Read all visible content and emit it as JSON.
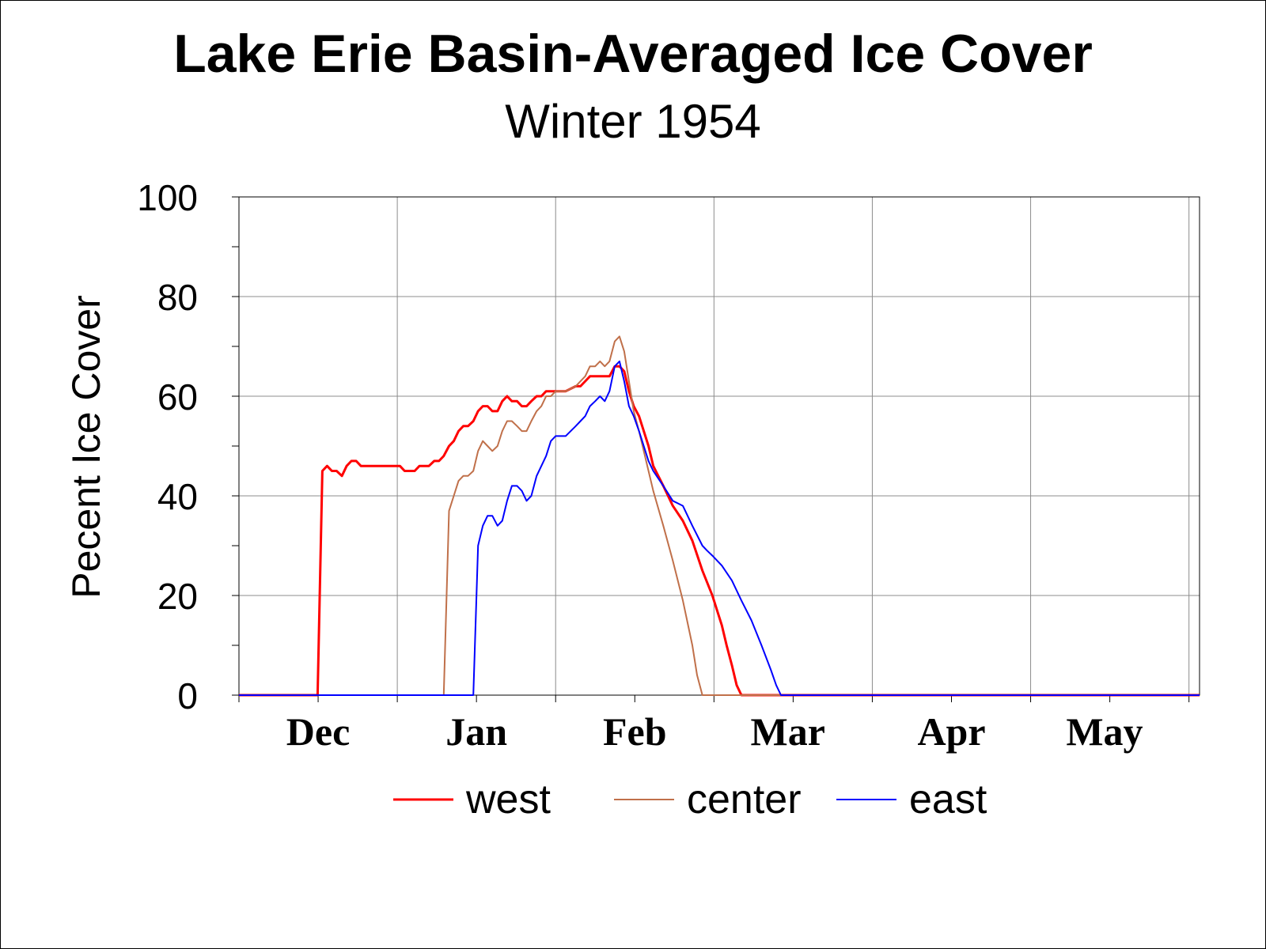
{
  "title": "Lake Erie Basin-Averaged Ice Cover",
  "subtitle": "Winter 1954",
  "chart_data": {
    "type": "line",
    "title": "Lake Erie Basin-Averaged Ice Cover",
    "subtitle": "Winter 1954",
    "xlabel": "",
    "ylabel": "Pecent Ice Cover",
    "ylim": [
      0,
      100
    ],
    "yticks": [
      0,
      20,
      40,
      60,
      80,
      100
    ],
    "xlim": [
      0,
      182
    ],
    "x_unit": "days from Nov 1",
    "xticks": [
      {
        "label": "Dec",
        "x": 15
      },
      {
        "label": "Jan",
        "x": 45
      },
      {
        "label": "Feb",
        "x": 75
      },
      {
        "label": "Mar",
        "x": 104
      },
      {
        "label": "Apr",
        "x": 135
      },
      {
        "label": "May",
        "x": 164
      }
    ],
    "grid": true,
    "legend_position": "bottom",
    "series": [
      {
        "name": "west",
        "color": "#ff0000",
        "x": [
          0,
          14.9,
          15.8,
          16.7,
          17.6,
          18.5,
          19.5,
          20.4,
          21.3,
          22.2,
          23.1,
          24.1,
          25,
          26.8,
          28.7,
          30.5,
          31.4,
          32.3,
          33.3,
          34.2,
          35.1,
          36,
          37,
          37.9,
          38.8,
          39.8,
          40.7,
          41.6,
          42.5,
          43.4,
          44.4,
          45.3,
          46.2,
          47.1,
          48,
          49,
          49.9,
          50.8,
          51.7,
          52.7,
          53.6,
          54.5,
          55.4,
          56.4,
          57.3,
          58.2,
          59.1,
          60,
          61.9,
          63.8,
          64.7,
          65.6,
          66.5,
          67.5,
          68.4,
          69.3,
          70.2,
          71.2,
          72.1,
          73,
          73.9,
          74.8,
          75.8,
          76.7,
          77.6,
          78.5,
          80.4,
          82.2,
          84.1,
          85.9,
          87.8,
          89.7,
          90.6,
          91.5,
          92.4,
          93.4,
          94.3,
          95.2,
          96.1,
          97.1,
          98,
          99,
          182
        ],
        "y": [
          0,
          0,
          45,
          46,
          45,
          45,
          44,
          46,
          47,
          47,
          46,
          46,
          46,
          46,
          46,
          46,
          45,
          45,
          45,
          46,
          46,
          46,
          47,
          47,
          48,
          50,
          51,
          53,
          54,
          54,
          55,
          57,
          58,
          58,
          57,
          57,
          59,
          60,
          59,
          59,
          58,
          58,
          59,
          60,
          60,
          61,
          61,
          61,
          61,
          62,
          62,
          63,
          64,
          64,
          64,
          64,
          64,
          66,
          66,
          65,
          61,
          58,
          56,
          53,
          50,
          46,
          42,
          38,
          35,
          31,
          25,
          20,
          17,
          14,
          10,
          6,
          2,
          0,
          0,
          0,
          0,
          0,
          0
        ]
      },
      {
        "name": "center",
        "color": "#c0704a",
        "x": [
          0,
          38.8,
          39.8,
          40.7,
          41.6,
          42.5,
          43.4,
          44.4,
          45.3,
          46.2,
          47.1,
          48,
          49,
          49.9,
          50.8,
          51.7,
          52.7,
          53.6,
          54.5,
          55.4,
          56.4,
          57.3,
          58.2,
          59.1,
          60,
          61.9,
          63.8,
          64.7,
          65.6,
          66.5,
          67.5,
          68.4,
          69.3,
          70.2,
          71.2,
          72.1,
          73,
          73.9,
          74.8,
          75.8,
          76.7,
          77.6,
          78.5,
          80.4,
          82.2,
          84.1,
          85.9,
          86.8,
          87.8,
          88.7,
          89.7,
          182
        ],
        "y": [
          0,
          0,
          37,
          40,
          43,
          44,
          44,
          45,
          49,
          51,
          50,
          49,
          50,
          53,
          55,
          55,
          54,
          53,
          53,
          55,
          57,
          58,
          60,
          60,
          61,
          61,
          62,
          63,
          64,
          66,
          66,
          67,
          66,
          67,
          71,
          72,
          69,
          63,
          57,
          53,
          49,
          45,
          41,
          34,
          27,
          19,
          10,
          4,
          0,
          0,
          0,
          0
        ]
      },
      {
        "name": "east",
        "color": "#0000ff",
        "x": [
          0,
          44.4,
          45.3,
          46.2,
          47.1,
          48,
          49,
          49.9,
          50.8,
          51.7,
          52.7,
          53.6,
          54.5,
          55.4,
          56.4,
          57.3,
          58.2,
          59.1,
          60,
          61.9,
          63.8,
          64.7,
          65.6,
          66.5,
          67.5,
          68.4,
          69.3,
          70.2,
          71.2,
          72.1,
          73,
          73.9,
          74.8,
          75.8,
          76.7,
          77.6,
          78.5,
          80.4,
          82.2,
          84.1,
          85.9,
          87.8,
          88.7,
          89.7,
          91.5,
          93.4,
          95.2,
          97.1,
          99,
          100.8,
          101.8,
          102.7,
          103.6,
          104.5,
          182
        ],
        "y": [
          0,
          0,
          30,
          34,
          36,
          36,
          34,
          35,
          39,
          42,
          42,
          41,
          39,
          40,
          44,
          46,
          48,
          51,
          52,
          52,
          54,
          55,
          56,
          58,
          59,
          60,
          59,
          61,
          66,
          67,
          63,
          58,
          56,
          53,
          50,
          47,
          45,
          42,
          39,
          38,
          34,
          30,
          29,
          28,
          26,
          23,
          19,
          15,
          10,
          5,
          2,
          0,
          0,
          0,
          0
        ]
      }
    ]
  }
}
